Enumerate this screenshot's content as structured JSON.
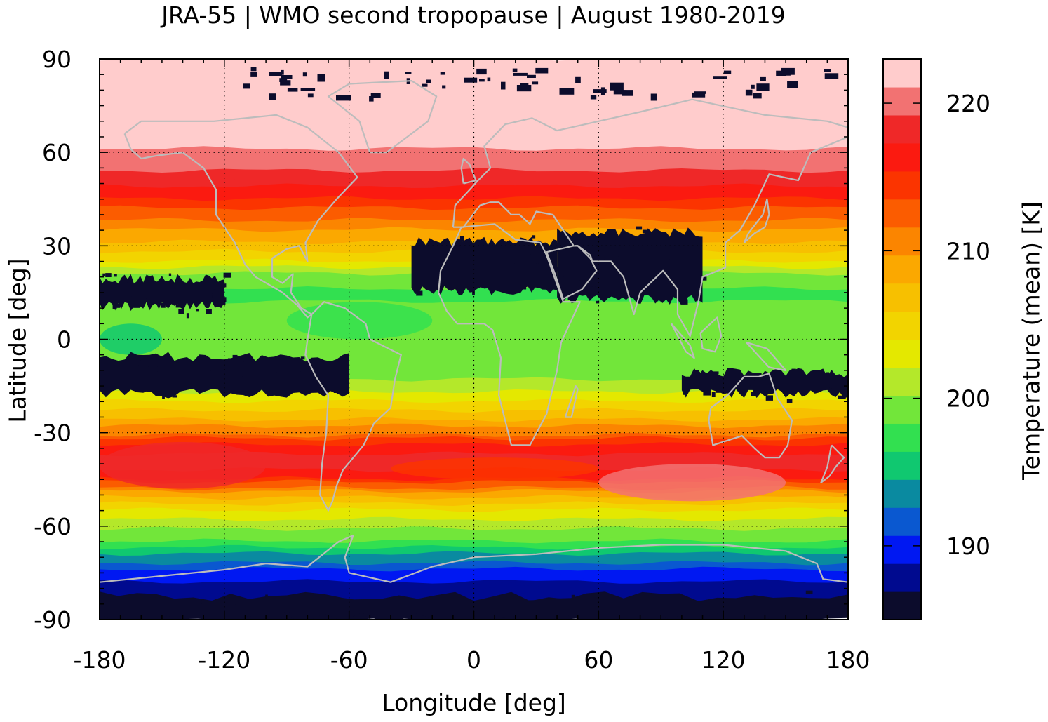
{
  "chart_data": {
    "type": "heatmap",
    "title": "JRA-55 | WMO second tropopause | August 1980-2019",
    "xlabel": "Longitude [deg]",
    "ylabel": "Latitude [deg]",
    "xlim": [
      -180,
      180
    ],
    "ylim": [
      -90,
      90
    ],
    "x_ticks": [
      -180,
      -120,
      -60,
      0,
      60,
      120,
      180
    ],
    "y_ticks": [
      90,
      60,
      30,
      0,
      -30,
      -60,
      -90
    ],
    "grid": true,
    "colorbar": {
      "label": "Temperature (mean) [K]",
      "range": [
        185,
        223
      ],
      "ticks": [
        190,
        200,
        210,
        220
      ],
      "colors": [
        "#0c0c2c",
        "#000a8f",
        "#0018f2",
        "#0a58d0",
        "#0a8aa0",
        "#10c870",
        "#32e050",
        "#72e63a",
        "#b4e82a",
        "#e4e800",
        "#f2d400",
        "#f7c000",
        "#fba800",
        "#fb8500",
        "#fb5c00",
        "#fb3400",
        "#fb1a10",
        "#ef2828",
        "#f27272",
        "#ffcccc"
      ]
    },
    "zonal_mean_profile": {
      "lat": [
        90,
        80,
        72,
        65,
        60,
        55,
        50,
        45,
        40,
        35,
        30,
        25,
        20,
        15,
        10,
        5,
        0,
        -5,
        -10,
        -15,
        -20,
        -25,
        -30,
        -35,
        -40,
        -45,
        -50,
        -55,
        -60,
        -65,
        -70,
        -75,
        -80,
        -90
      ],
      "temp": [
        223,
        223,
        222.5,
        222,
        221,
        219.5,
        218,
        215.5,
        212.5,
        210,
        207,
        204,
        199,
        198,
        198.5,
        198.5,
        199,
        198.5,
        199,
        201,
        204,
        207,
        211,
        216,
        219,
        215,
        209,
        204,
        201,
        198,
        194,
        190,
        188,
        185
      ]
    },
    "low_temperature_regions": [
      {
        "lon": [
          -30,
          40
        ],
        "lat": [
          15,
          32
        ]
      },
      {
        "lon": [
          40,
          110
        ],
        "lat": [
          12,
          35
        ]
      },
      {
        "lon": [
          -180,
          -120
        ],
        "lat": [
          10,
          20
        ]
      },
      {
        "lon": [
          -180,
          -60
        ],
        "lat": [
          -18,
          -5
        ]
      },
      {
        "lon": [
          100,
          180
        ],
        "lat": [
          -18,
          -10
        ]
      },
      {
        "lon": [
          -180,
          180
        ],
        "lat": [
          -90,
          -82
        ]
      }
    ],
    "coastlines": true
  }
}
